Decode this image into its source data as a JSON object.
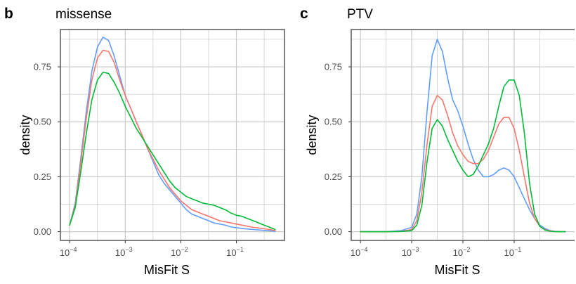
{
  "colors": {
    "series_1": "#619CFF",
    "series_2": "#F8766D",
    "series_3": "#00BA38",
    "grid": "#c8c8c8",
    "frame": "#7f7f7f"
  },
  "chart_data": [
    {
      "panel_letter": "b",
      "title": "missense",
      "type": "line",
      "xlabel": "MisFit S",
      "ylabel": "density",
      "x_scale": "log10",
      "xlim": [
        0.0001,
        0.5
      ],
      "ylim": [
        0,
        0.88
      ],
      "x_ticks": [
        {
          "base": "10",
          "exp": "−4",
          "value": 0.0001
        },
        {
          "base": "10",
          "exp": "−3",
          "value": 0.001
        },
        {
          "base": "10",
          "exp": "−2",
          "value": 0.01
        },
        {
          "base": "10",
          "exp": "−1",
          "value": 0.1
        }
      ],
      "y_ticks": [
        "0.00",
        "0.25",
        "0.50",
        "0.75"
      ],
      "grid": true,
      "legend": "none",
      "series": [
        {
          "color": "#619CFF",
          "x": [
            0.0001,
            0.000126,
            0.000158,
            0.0002,
            0.000251,
            0.000316,
            0.000398,
            0.000501,
            0.000631,
            0.000794,
            0.001,
            0.00126,
            0.00158,
            0.002,
            0.00251,
            0.00316,
            0.00398,
            0.00501,
            0.00631,
            0.00794,
            0.01,
            0.0126,
            0.0158,
            0.02,
            0.0251,
            0.0316,
            0.0398,
            0.0501,
            0.0631,
            0.0794,
            0.1,
            0.126,
            0.158,
            0.2,
            0.251,
            0.316,
            0.398,
            0.5
          ],
          "y": [
            0.03,
            0.13,
            0.33,
            0.55,
            0.73,
            0.84,
            0.885,
            0.87,
            0.8,
            0.71,
            0.62,
            0.56,
            0.5,
            0.44,
            0.38,
            0.32,
            0.26,
            0.22,
            0.19,
            0.16,
            0.13,
            0.1,
            0.08,
            0.07,
            0.06,
            0.05,
            0.04,
            0.035,
            0.03,
            0.022,
            0.018,
            0.015,
            0.012,
            0.01,
            0.008,
            0.006,
            0.004,
            0.002
          ]
        },
        {
          "color": "#F8766D",
          "x": [
            0.0001,
            0.000126,
            0.000158,
            0.0002,
            0.000251,
            0.000316,
            0.000398,
            0.000501,
            0.000631,
            0.000794,
            0.001,
            0.00126,
            0.00158,
            0.002,
            0.00251,
            0.00316,
            0.00398,
            0.00501,
            0.00631,
            0.00794,
            0.01,
            0.0126,
            0.0158,
            0.02,
            0.0251,
            0.0316,
            0.0398,
            0.0501,
            0.0631,
            0.0794,
            0.1,
            0.126,
            0.158,
            0.2,
            0.251,
            0.316,
            0.398,
            0.5
          ],
          "y": [
            0.03,
            0.12,
            0.31,
            0.52,
            0.69,
            0.79,
            0.825,
            0.82,
            0.77,
            0.69,
            0.62,
            0.56,
            0.5,
            0.44,
            0.38,
            0.33,
            0.28,
            0.24,
            0.2,
            0.17,
            0.14,
            0.12,
            0.1,
            0.09,
            0.08,
            0.07,
            0.06,
            0.05,
            0.045,
            0.04,
            0.035,
            0.03,
            0.025,
            0.02,
            0.017,
            0.013,
            0.01,
            0.005
          ]
        },
        {
          "color": "#00BA38",
          "x": [
            0.0001,
            0.000126,
            0.000158,
            0.0002,
            0.000251,
            0.000316,
            0.000398,
            0.000501,
            0.000631,
            0.000794,
            0.001,
            0.00126,
            0.00158,
            0.002,
            0.00251,
            0.00316,
            0.00398,
            0.00501,
            0.00631,
            0.00794,
            0.01,
            0.0126,
            0.0158,
            0.02,
            0.0251,
            0.0316,
            0.0398,
            0.0501,
            0.0631,
            0.0794,
            0.1,
            0.126,
            0.158,
            0.2,
            0.251,
            0.316,
            0.398,
            0.5
          ],
          "y": [
            0.03,
            0.11,
            0.27,
            0.45,
            0.6,
            0.69,
            0.725,
            0.72,
            0.68,
            0.63,
            0.57,
            0.52,
            0.47,
            0.43,
            0.39,
            0.35,
            0.31,
            0.27,
            0.23,
            0.2,
            0.18,
            0.16,
            0.15,
            0.14,
            0.13,
            0.125,
            0.12,
            0.11,
            0.1,
            0.085,
            0.075,
            0.07,
            0.06,
            0.05,
            0.04,
            0.03,
            0.02,
            0.01
          ]
        }
      ]
    },
    {
      "panel_letter": "c",
      "title": "PTV",
      "type": "line",
      "xlabel": "MisFit S",
      "ylabel": "density",
      "x_scale": "log10",
      "xlim": [
        0.0001,
        1
      ],
      "ylim": [
        0,
        0.88
      ],
      "x_ticks": [
        {
          "base": "10",
          "exp": "−4",
          "value": 0.0001
        },
        {
          "base": "10",
          "exp": "−3",
          "value": 0.001
        },
        {
          "base": "10",
          "exp": "−2",
          "value": 0.01
        },
        {
          "base": "10",
          "exp": "−1",
          "value": 0.1
        }
      ],
      "y_ticks": [
        "0.00",
        "0.25",
        "0.50",
        "0.75"
      ],
      "grid": true,
      "legend": "none",
      "series": [
        {
          "color": "#619CFF",
          "x": [
            0.0001,
            0.000316,
            0.000631,
            0.001,
            0.00126,
            0.00158,
            0.002,
            0.00251,
            0.00316,
            0.00398,
            0.00501,
            0.00631,
            0.00794,
            0.01,
            0.0126,
            0.0158,
            0.02,
            0.0251,
            0.0316,
            0.0398,
            0.0501,
            0.0631,
            0.0794,
            0.1,
            0.126,
            0.158,
            0.2,
            0.251,
            0.316,
            0.398,
            0.501,
            0.631,
            1
          ],
          "y": [
            0.0,
            0.0,
            0.005,
            0.02,
            0.08,
            0.25,
            0.55,
            0.8,
            0.875,
            0.82,
            0.7,
            0.6,
            0.55,
            0.48,
            0.4,
            0.33,
            0.28,
            0.25,
            0.25,
            0.26,
            0.28,
            0.29,
            0.28,
            0.25,
            0.2,
            0.15,
            0.1,
            0.06,
            0.03,
            0.015,
            0.005,
            0.002,
            0.0
          ]
        },
        {
          "color": "#F8766D",
          "x": [
            0.0001,
            0.000316,
            0.000631,
            0.001,
            0.00126,
            0.00158,
            0.002,
            0.00251,
            0.00316,
            0.00398,
            0.00501,
            0.00631,
            0.00794,
            0.01,
            0.0126,
            0.0158,
            0.02,
            0.0251,
            0.0316,
            0.0398,
            0.0501,
            0.0631,
            0.0794,
            0.1,
            0.126,
            0.158,
            0.2,
            0.251,
            0.316,
            0.398,
            0.501,
            0.631,
            1
          ],
          "y": [
            0.0,
            0.0,
            0.002,
            0.01,
            0.05,
            0.18,
            0.4,
            0.57,
            0.62,
            0.6,
            0.53,
            0.45,
            0.39,
            0.35,
            0.32,
            0.31,
            0.31,
            0.33,
            0.37,
            0.43,
            0.49,
            0.52,
            0.52,
            0.47,
            0.37,
            0.25,
            0.13,
            0.06,
            0.025,
            0.01,
            0.004,
            0.001,
            0.0
          ]
        },
        {
          "color": "#00BA38",
          "x": [
            0.0001,
            0.000316,
            0.000631,
            0.001,
            0.00126,
            0.00158,
            0.002,
            0.00251,
            0.00316,
            0.00398,
            0.00501,
            0.00631,
            0.00794,
            0.01,
            0.0126,
            0.0158,
            0.02,
            0.0251,
            0.0316,
            0.0398,
            0.0501,
            0.0631,
            0.0794,
            0.1,
            0.126,
            0.158,
            0.2,
            0.251,
            0.316,
            0.398,
            0.501,
            0.631,
            1
          ],
          "y": [
            0.0,
            0.0,
            0.001,
            0.005,
            0.03,
            0.12,
            0.32,
            0.47,
            0.51,
            0.48,
            0.42,
            0.37,
            0.32,
            0.28,
            0.25,
            0.26,
            0.3,
            0.35,
            0.4,
            0.47,
            0.57,
            0.66,
            0.69,
            0.69,
            0.62,
            0.45,
            0.22,
            0.08,
            0.025,
            0.008,
            0.002,
            0.0,
            0.0
          ]
        }
      ]
    }
  ]
}
